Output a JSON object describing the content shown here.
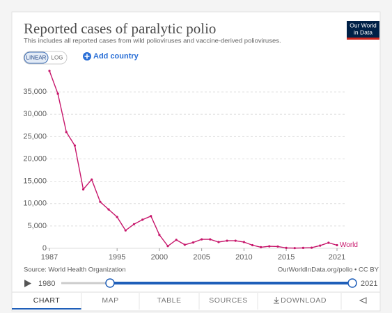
{
  "header": {
    "title": "Reported cases of paralytic polio",
    "subtitle": "This includes all reported cases from wild polioviruses and vaccine-derived polioviruses.",
    "logo": [
      "Our World",
      "in Data"
    ]
  },
  "controls": {
    "linear": "LINEAR",
    "log": "LOG",
    "add_country": "Add country"
  },
  "chart_data": {
    "type": "line",
    "x": [
      1987,
      1988,
      1989,
      1990,
      1991,
      1992,
      1993,
      1994,
      1995,
      1996,
      1997,
      1998,
      1999,
      2000,
      2001,
      2002,
      2003,
      2004,
      2005,
      2006,
      2007,
      2008,
      2009,
      2010,
      2011,
      2012,
      2013,
      2014,
      2015,
      2016,
      2017,
      2018,
      2019,
      2020,
      2021
    ],
    "series": [
      {
        "name": "World",
        "color": "#c7166b",
        "values": [
          39700,
          34600,
          26000,
          23000,
          13200,
          15400,
          10400,
          8700,
          7000,
          4000,
          5400,
          6400,
          7200,
          3000,
          500,
          1900,
          800,
          1300,
          2000,
          2000,
          1400,
          1700,
          1700,
          1400,
          700,
          250,
          450,
          400,
          100,
          50,
          100,
          140,
          600,
          1250,
          700
        ]
      }
    ],
    "xlim": [
      1987,
      2021
    ],
    "xticks": [
      1987,
      1995,
      2000,
      2005,
      2010,
      2015,
      2021
    ],
    "ylim": [
      0,
      40000
    ],
    "yticks": [
      0,
      {
        "value": 5000,
        "label": "5,000"
      },
      {
        "value": 10000,
        "label": "10,000"
      },
      {
        "value": 15000,
        "label": "15,000"
      },
      {
        "value": 20000,
        "label": "20,000"
      },
      {
        "value": 25000,
        "label": "25,000"
      },
      {
        "value": 30000,
        "label": "30,000"
      },
      {
        "value": 35000,
        "label": "35,000"
      }
    ],
    "grid": true,
    "log_scale": false
  },
  "footer": {
    "source": "Source: World Health Organization",
    "url": "OurWorldInData.org/polio • CC BY"
  },
  "timeline": {
    "start": 1980,
    "end": 2021
  },
  "tabs": [
    "CHART",
    "MAP",
    "TABLE",
    "SOURCES",
    "DOWNLOAD"
  ]
}
